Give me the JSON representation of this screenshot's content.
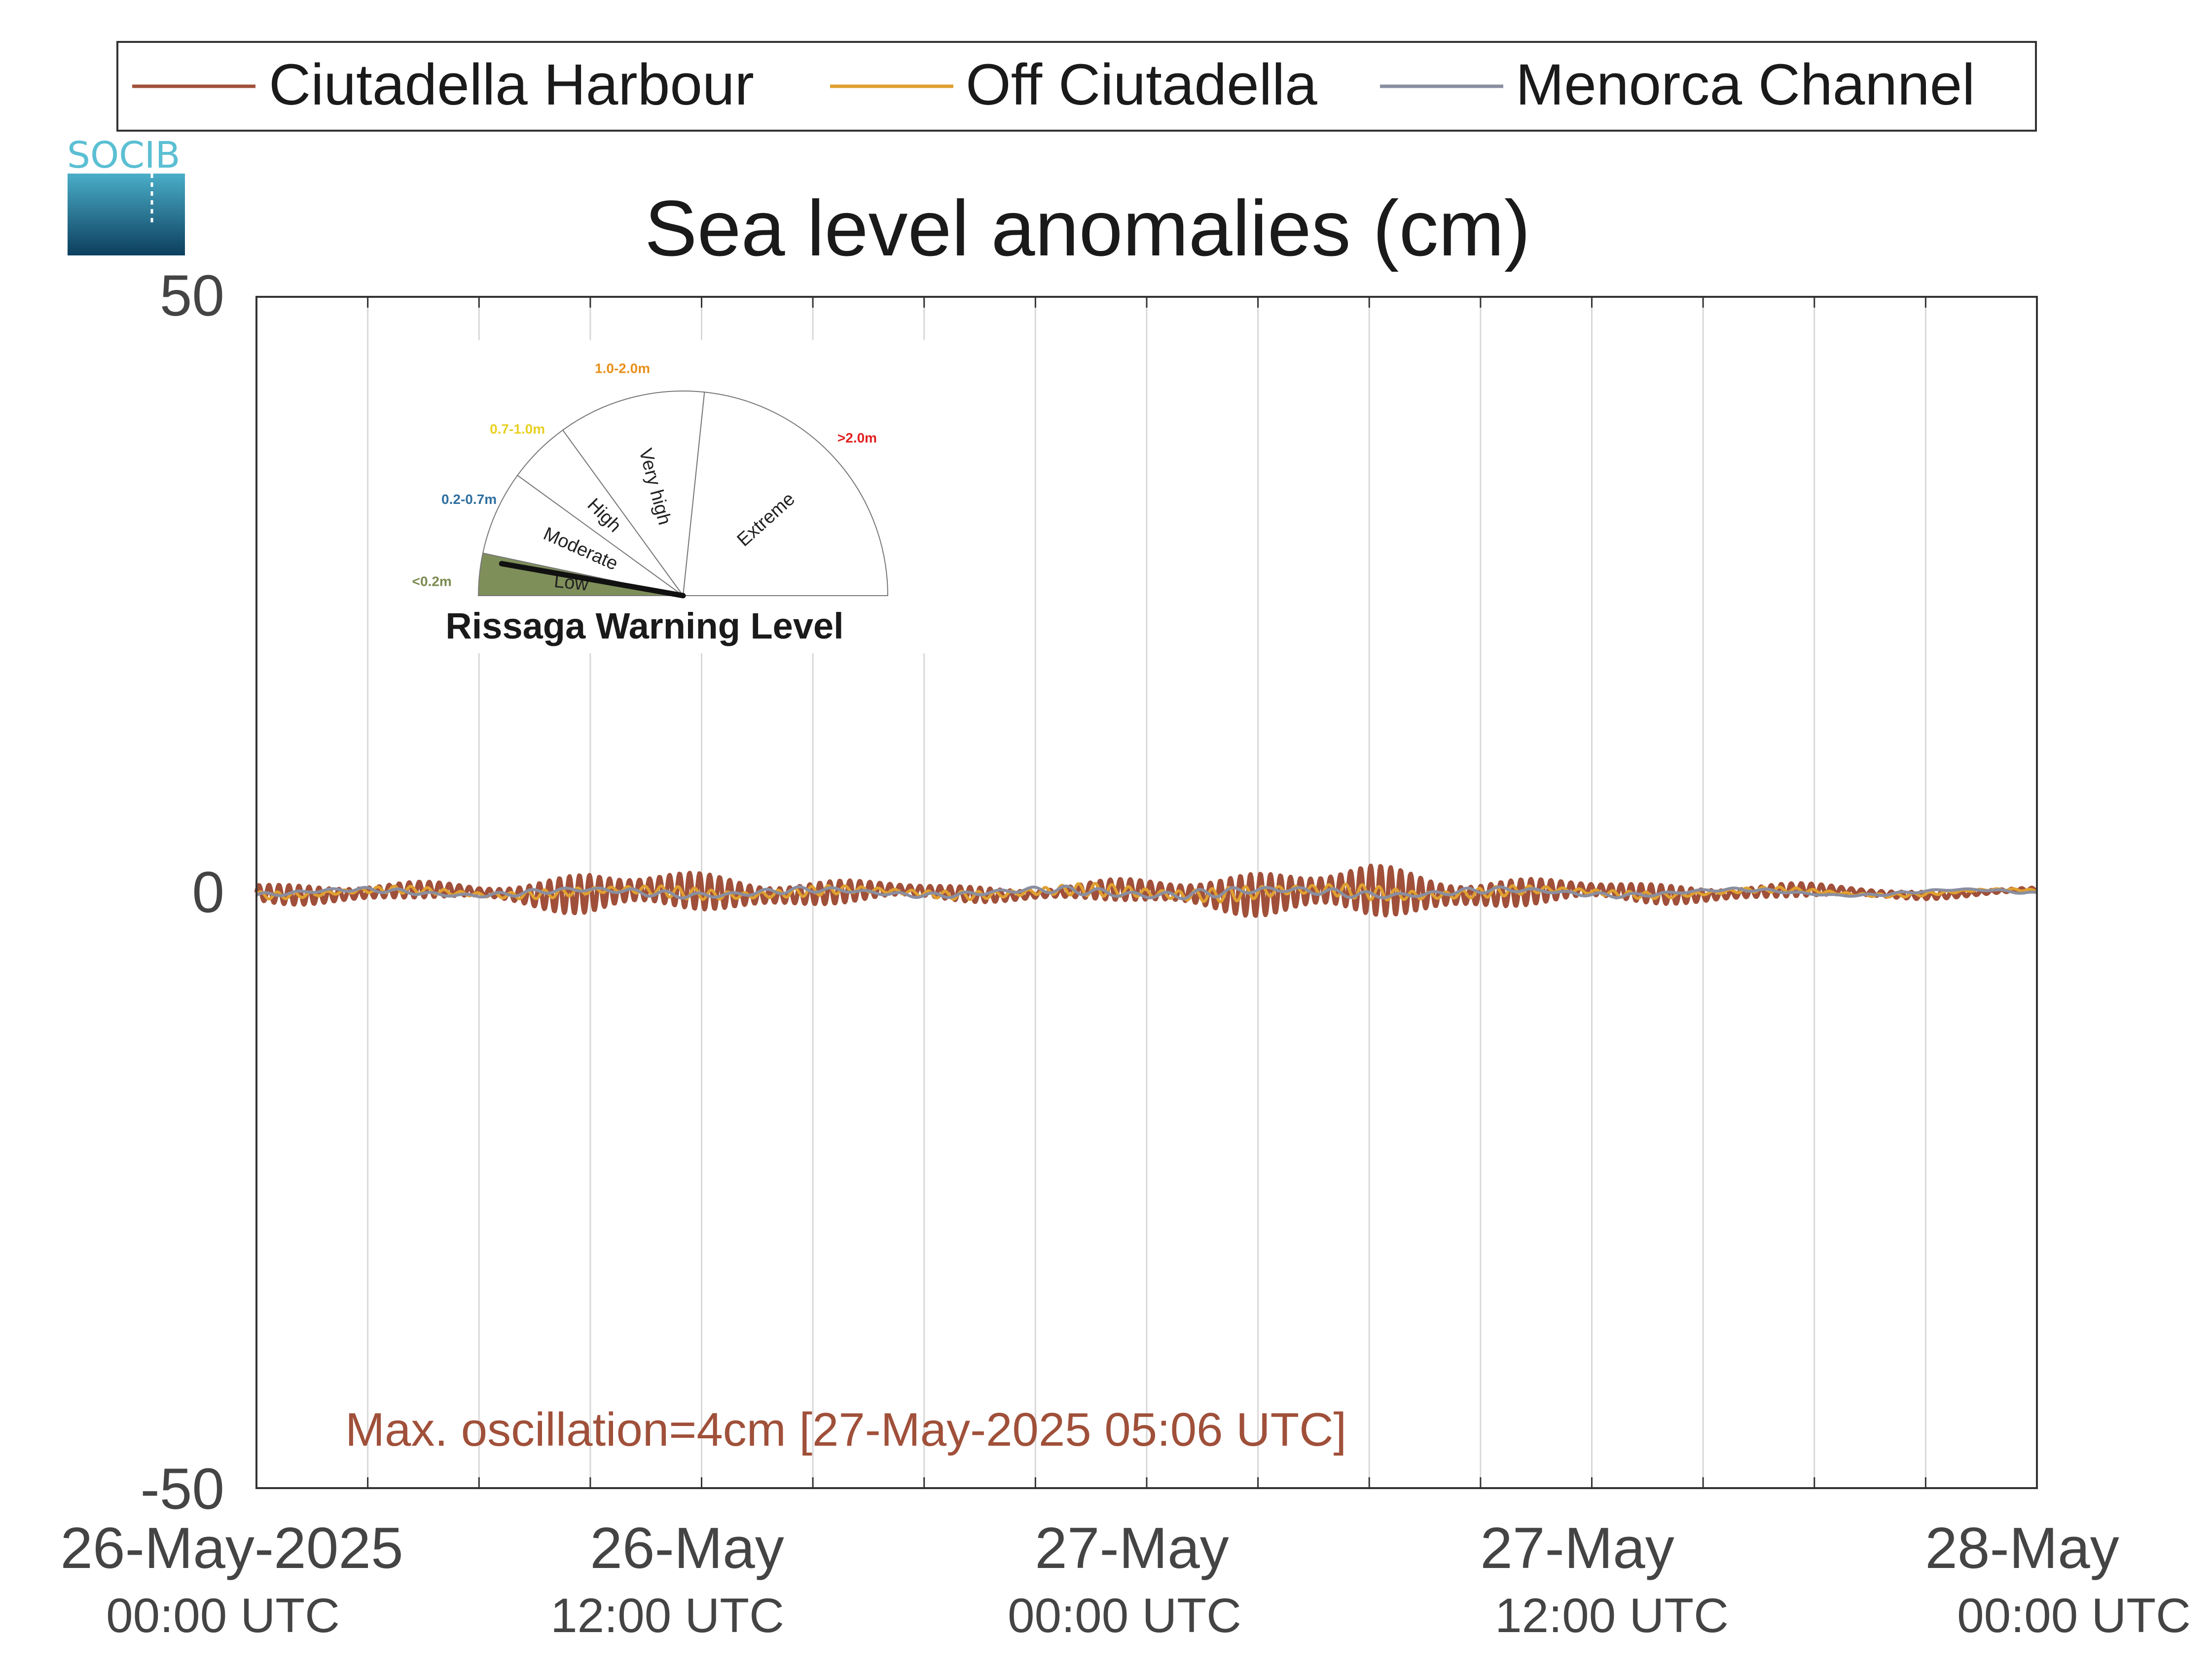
{
  "chart_data": {
    "type": "line",
    "title": "Sea level anomalies (cm)",
    "ylim": [
      -50,
      50
    ],
    "yticks": [
      "50",
      "0",
      "-50"
    ],
    "x_range": [
      "26-May-2025 00:00 UTC",
      "28-May-2025 00:00 UTC"
    ],
    "x_tick_labels": [
      {
        "date": "26-May-2025",
        "time": "00:00 UTC"
      },
      {
        "date": "26-May",
        "time": "12:00 UTC"
      },
      {
        "date": "27-May",
        "time": "00:00 UTC"
      },
      {
        "date": "27-May",
        "time": "12:00 UTC"
      },
      {
        "date": "28-May",
        "time": "00:00 UTC"
      }
    ],
    "grid": "vertical lines every 3 hours",
    "legend_position": "top",
    "series": [
      {
        "name": "Ciutadella Harbour",
        "color": "#a0503a",
        "hours": [
          0,
          3,
          6,
          9,
          12,
          15,
          18,
          21,
          24,
          27,
          30,
          33,
          36,
          39,
          42,
          45,
          48
        ],
        "amplitude": [
          0.8,
          0.8,
          0.5,
          1.8,
          1.5,
          1.0,
          0.7,
          0.5,
          1.0,
          1.8,
          2.2,
          1.2,
          0.9,
          0.7,
          0.5,
          0.3,
          0.2
        ]
      },
      {
        "name": "Off Ciutadella",
        "color": "#e0a030",
        "hours": [
          0,
          6,
          12,
          18,
          24,
          30,
          36,
          42,
          48
        ],
        "amplitude": [
          0.3,
          0.3,
          0.5,
          0.3,
          0.6,
          0.6,
          0.3,
          0.2,
          0.1
        ]
      },
      {
        "name": "Menorca Channel",
        "color": "#8a8ea0",
        "hours": [
          0,
          6,
          12,
          18,
          24,
          30,
          36,
          42,
          48
        ],
        "amplitude": [
          0.2,
          0.2,
          0.3,
          0.2,
          0.4,
          0.3,
          0.2,
          0.1,
          0.1
        ]
      }
    ],
    "annotation": "Max. oscillation=4cm [27-May-2025 05:06 UTC]",
    "annotation_color": "#a0503a"
  },
  "logo": {
    "text": "SOCIB"
  },
  "gauge": {
    "title": "Rissaga Warning Level",
    "current_level": "Low",
    "sectors": [
      {
        "label": "Low",
        "range": "<0.2m",
        "range_color": "#7a8a50",
        "fill": "#7f8f5a"
      },
      {
        "label": "Moderate",
        "range": "0.2-0.7m",
        "range_color": "#2f6f9f",
        "fill": "#ffffff"
      },
      {
        "label": "High",
        "range": "0.7-1.0m",
        "range_color": "#e8d020",
        "fill": "#ffffff"
      },
      {
        "label": "Very high",
        "range": "1.0-2.0m",
        "range_color": "#e8901a",
        "fill": "#ffffff"
      },
      {
        "label": "Extreme",
        "range": ">2.0m",
        "range_color": "#e02020",
        "fill": "#ffffff"
      }
    ]
  }
}
